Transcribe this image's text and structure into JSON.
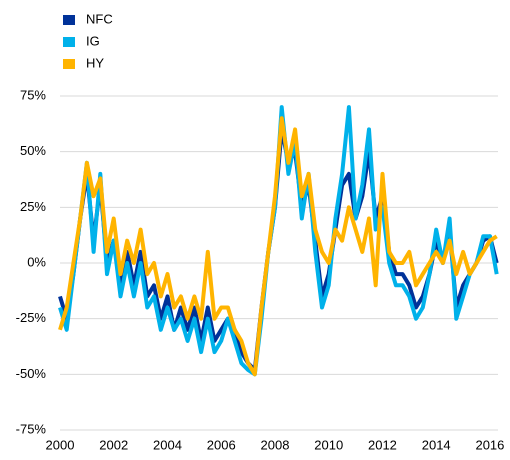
{
  "chart_data": {
    "type": "line",
    "x": [
      2000,
      2000.25,
      2000.5,
      2000.75,
      2001,
      2001.25,
      2001.5,
      2001.75,
      2002,
      2002.25,
      2002.5,
      2002.75,
      2003,
      2003.25,
      2003.5,
      2003.75,
      2004,
      2004.25,
      2004.5,
      2004.75,
      2005,
      2005.25,
      2005.5,
      2005.75,
      2006,
      2006.25,
      2006.5,
      2006.75,
      2007,
      2007.25,
      2007.5,
      2007.75,
      2008,
      2008.25,
      2008.5,
      2008.75,
      2009,
      2009.25,
      2009.5,
      2009.75,
      2010,
      2010.25,
      2010.5,
      2010.75,
      2011,
      2011.25,
      2011.5,
      2011.75,
      2012,
      2012.25,
      2012.5,
      2012.75,
      2013,
      2013.25,
      2013.5,
      2013.75,
      2014,
      2014.25,
      2014.5,
      2014.75,
      2015,
      2015.25,
      2015.5,
      2015.75,
      2016,
      2016.25
    ],
    "series": [
      {
        "name": "NFC",
        "color": "#003299",
        "values": [
          -15,
          -25,
          -5,
          20,
          40,
          10,
          35,
          0,
          10,
          -10,
          5,
          -10,
          5,
          -15,
          -10,
          -25,
          -15,
          -30,
          -20,
          -30,
          -20,
          -35,
          -20,
          -35,
          -30,
          -25,
          -30,
          -40,
          -45,
          -48,
          -20,
          5,
          25,
          60,
          45,
          50,
          25,
          35,
          10,
          -15,
          -5,
          15,
          35,
          40,
          20,
          30,
          50,
          20,
          30,
          5,
          -5,
          -5,
          -10,
          -20,
          -15,
          -5,
          10,
          0,
          15,
          -20,
          -10,
          -5,
          0,
          10,
          12,
          0
        ]
      },
      {
        "name": "IG",
        "color": "#00b1ea",
        "values": [
          -20,
          -30,
          -5,
          20,
          45,
          5,
          40,
          -5,
          10,
          -15,
          0,
          -15,
          0,
          -20,
          -15,
          -30,
          -20,
          -30,
          -25,
          -35,
          -25,
          -40,
          -25,
          -40,
          -35,
          -25,
          -35,
          -45,
          -48,
          -50,
          -25,
          5,
          25,
          70,
          40,
          55,
          20,
          40,
          5,
          -20,
          -10,
          20,
          40,
          70,
          20,
          35,
          60,
          15,
          25,
          0,
          -10,
          -10,
          -15,
          -25,
          -20,
          -5,
          15,
          0,
          20,
          -25,
          -15,
          -5,
          0,
          12,
          12,
          -5
        ]
      },
      {
        "name": "HY",
        "color": "#ffb400",
        "values": [
          -30,
          -20,
          0,
          20,
          45,
          30,
          38,
          5,
          20,
          -5,
          10,
          0,
          15,
          -5,
          0,
          -15,
          -5,
          -20,
          -15,
          -25,
          -15,
          -25,
          5,
          -25,
          -20,
          -20,
          -30,
          -35,
          -45,
          -50,
          -20,
          5,
          30,
          65,
          45,
          60,
          30,
          40,
          15,
          5,
          0,
          15,
          10,
          25,
          15,
          5,
          20,
          -10,
          40,
          5,
          0,
          0,
          5,
          -10,
          -5,
          0,
          5,
          0,
          10,
          -5,
          5,
          -5,
          0,
          5,
          10,
          12
        ]
      }
    ],
    "xlim": [
      2000,
      2016.3
    ],
    "xticks": [
      2000,
      2002,
      2004,
      2006,
      2008,
      2010,
      2012,
      2014,
      2016
    ],
    "ylim": [
      -75,
      75
    ],
    "yticks": [
      {
        "value": -75,
        "label": "-75%"
      },
      {
        "value": -50,
        "label": "-50%"
      },
      {
        "value": -25,
        "label": "-25%"
      },
      {
        "value": 0,
        "label": "0%"
      },
      {
        "value": 25,
        "label": "25%"
      },
      {
        "value": 50,
        "label": "50%"
      },
      {
        "value": 75,
        "label": "75%"
      }
    ],
    "grid": true,
    "legend": "top-left"
  }
}
